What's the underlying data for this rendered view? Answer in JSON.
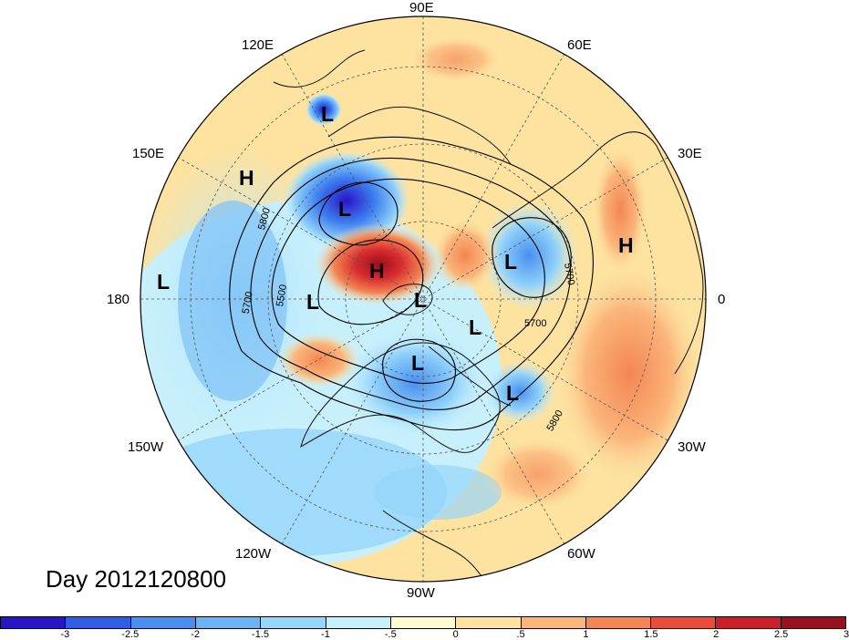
{
  "title": "Day 2012120800",
  "longitude_labels": {
    "n90e": "90E",
    "n60e": "60E",
    "n30e": "30E",
    "n0": "0",
    "n30w": "30W",
    "n60w": "60W",
    "n90w": "90W",
    "n120w": "120W",
    "n150w": "150W",
    "n180": "180",
    "n150e": "150E",
    "n120e": "120E"
  },
  "contour_labels": [
    "5800",
    "5700",
    "5500",
    "5700",
    "5700",
    "5800"
  ],
  "pressure_centers": [
    {
      "type": "L",
      "label": "L"
    },
    {
      "type": "H",
      "label": "H"
    },
    {
      "type": "L",
      "label": "L"
    },
    {
      "type": "L",
      "label": "L"
    },
    {
      "type": "H",
      "label": "H"
    },
    {
      "type": "H",
      "label": "H"
    },
    {
      "type": "L",
      "label": "L"
    },
    {
      "type": "L",
      "label": "L"
    },
    {
      "type": "L",
      "label": "L"
    },
    {
      "type": "L",
      "label": "L"
    },
    {
      "type": "L",
      "label": "L"
    },
    {
      "type": "L",
      "label": "L"
    }
  ],
  "colorbar": {
    "colors": [
      "#2a14c8",
      "#2f5de6",
      "#4a8ff0",
      "#6bb3f5",
      "#96d6fa",
      "#c8f0fc",
      "#fffad0",
      "#fde2a0",
      "#fbb57a",
      "#f38654",
      "#ea4b3a",
      "#cc1f2a",
      "#99101f"
    ],
    "tick_labels": [
      "-3",
      "-2.5",
      "-2",
      "-1.5",
      "-1",
      "-.5",
      "0",
      ".5",
      "1",
      "1.5",
      "2",
      "2.5",
      "3"
    ]
  }
}
